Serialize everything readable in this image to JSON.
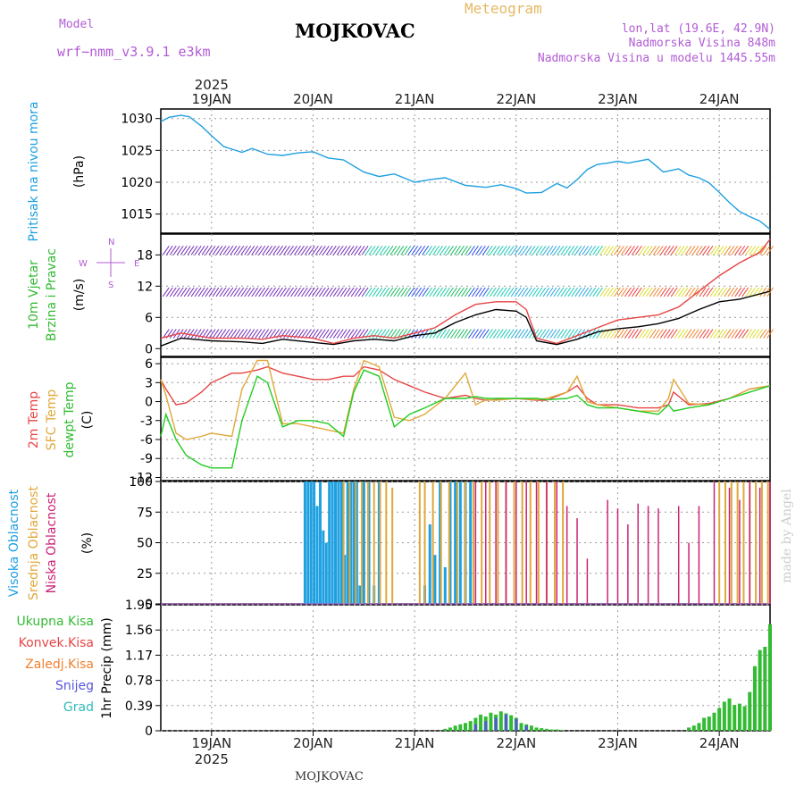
{
  "header": {
    "model_label": "Model",
    "model_name": "wrf−nmm_v3.9.1  e3km",
    "station": "MOJKOVAC",
    "meteogram_label": "Meteogram",
    "coords": "lon,lat (19.6E, 42.9N)",
    "elevation": "Nadmorska Visina 848m",
    "model_elevation": "Nadmorska Visina u modelu 1445.55m"
  },
  "footer": {
    "station": "MOJKOVAC",
    "watermark": "made by Angel"
  },
  "colors": {
    "pressure": "#1fa0e0",
    "temp2m": "#e84545",
    "sfc": "#e0a83a",
    "dew": "#22cc22",
    "high": "#1fa0e0",
    "mid": "#e0a83a",
    "low": "#cc2277",
    "total": "#33bb33",
    "conv": "#e84545",
    "freezing": "#f08030",
    "snow": "#5555dd",
    "grad": "#33bbbb",
    "wind": "#7733bb"
  },
  "x_axis": {
    "top_year": "2025",
    "bottom_year": "2025",
    "days": [
      "19JAN",
      "20JAN",
      "21JAN",
      "22JAN",
      "23JAN",
      "24JAN"
    ]
  },
  "chart_data": [
    {
      "type": "line",
      "name": "pressure",
      "title": "Pritisak na nivou mora",
      "ylabel": "(hPa)",
      "ylim": [
        1012,
        1031.5
      ],
      "yticks": [
        1015,
        1020,
        1025,
        1030
      ],
      "xlim": [
        -0.5,
        5.5
      ],
      "x": [
        -0.5,
        -0.42,
        -0.3,
        -0.22,
        -0.1,
        0.0,
        0.12,
        0.3,
        0.4,
        0.55,
        0.7,
        0.85,
        1.0,
        1.15,
        1.3,
        1.5,
        1.65,
        1.8,
        2.0,
        2.15,
        2.3,
        2.5,
        2.7,
        2.85,
        3.0,
        3.1,
        3.25,
        3.4,
        3.5,
        3.6,
        3.7,
        3.8,
        3.9,
        4.0,
        4.1,
        4.3,
        4.45,
        4.6,
        4.7,
        4.8,
        4.9,
        5.0,
        5.1,
        5.2,
        5.3,
        5.4,
        5.5
      ],
      "values": [
        1029.5,
        1030.2,
        1030.5,
        1030.3,
        1028.8,
        1027.3,
        1025.6,
        1024.7,
        1025.3,
        1024.4,
        1024.2,
        1024.6,
        1024.8,
        1023.8,
        1023.5,
        1021.6,
        1020.9,
        1021.3,
        1020.0,
        1020.4,
        1020.7,
        1019.5,
        1019.2,
        1019.6,
        1019.0,
        1018.3,
        1018.4,
        1019.8,
        1019.1,
        1020.4,
        1022.0,
        1022.8,
        1023.0,
        1023.3,
        1023.0,
        1023.6,
        1021.6,
        1022.1,
        1021.1,
        1020.7,
        1019.9,
        1018.4,
        1016.8,
        1015.4,
        1014.6,
        1013.9,
        1012.6
      ]
    },
    {
      "type": "line",
      "name": "wind",
      "title": "10m Vjetar Brzina i Pravac",
      "ylabel": "(m/s)",
      "ylim": [
        -1.5,
        22
      ],
      "yticks": [
        0,
        6,
        12,
        18
      ],
      "xlim": [
        -0.5,
        5.5
      ],
      "compass": {
        "north": "N",
        "south": "S",
        "east": "E",
        "west": "W"
      },
      "x": [
        -0.5,
        -0.3,
        0.0,
        0.3,
        0.5,
        0.7,
        1.0,
        1.2,
        1.4,
        1.6,
        1.8,
        2.0,
        2.2,
        2.4,
        2.6,
        2.8,
        3.0,
        3.1,
        3.2,
        3.4,
        3.6,
        3.8,
        4.0,
        4.2,
        4.4,
        4.6,
        4.8,
        5.0,
        5.2,
        5.4,
        5.5
      ],
      "series": [
        {
          "name": "mean speed",
          "values": [
            0.5,
            2.0,
            1.5,
            1.3,
            1.0,
            1.8,
            1.2,
            0.8,
            1.5,
            1.8,
            1.5,
            2.5,
            3.0,
            5.0,
            6.5,
            7.5,
            7.2,
            6.0,
            1.5,
            0.8,
            1.8,
            3.2,
            3.8,
            4.2,
            4.8,
            5.8,
            7.5,
            9.0,
            9.5,
            10.5,
            11.0
          ]
        },
        {
          "name": "gust",
          "values": [
            2.0,
            3.0,
            2.0,
            2.0,
            1.8,
            2.5,
            2.0,
            1.0,
            2.0,
            2.5,
            2.0,
            3.0,
            4.0,
            6.5,
            8.5,
            9.0,
            9.0,
            7.5,
            2.0,
            1.0,
            2.5,
            4.0,
            5.5,
            6.0,
            6.5,
            8.0,
            11.0,
            14.0,
            16.5,
            18.5,
            21.0
          ]
        }
      ]
    },
    {
      "type": "line",
      "name": "temperature",
      "title": "2m Temp / SFC Temp / dewpt Temp",
      "ylabel": "(C)",
      "ylim": [
        -12.5,
        7
      ],
      "yticks": [
        6,
        3,
        0,
        -3,
        -6,
        -9,
        -12
      ],
      "xlim": [
        -0.5,
        5.5
      ],
      "x": [
        -0.5,
        -0.45,
        -0.35,
        -0.25,
        -0.1,
        0.0,
        0.2,
        0.3,
        0.45,
        0.55,
        0.7,
        0.85,
        1.0,
        1.15,
        1.3,
        1.4,
        1.5,
        1.65,
        1.8,
        1.95,
        2.1,
        2.3,
        2.5,
        2.6,
        2.7,
        2.8,
        3.0,
        3.2,
        3.3,
        3.5,
        3.6,
        3.7,
        3.8,
        4.0,
        4.2,
        4.4,
        4.5,
        4.55,
        4.7,
        4.9,
        5.1,
        5.3,
        5.5
      ],
      "series": [
        {
          "name": "2m Temp",
          "values": [
            3.5,
            2.0,
            -0.5,
            -0.2,
            1.5,
            3.0,
            4.5,
            4.5,
            5.0,
            5.5,
            4.5,
            4.0,
            3.5,
            3.5,
            4.0,
            4.0,
            5.5,
            5.0,
            3.5,
            2.5,
            1.5,
            0.5,
            1.0,
            0.5,
            0.2,
            0.3,
            0.5,
            0.2,
            0.2,
            1.5,
            2.5,
            0.5,
            -0.5,
            -0.5,
            -1.0,
            -1.0,
            -0.5,
            1.5,
            -0.5,
            -0.3,
            0.5,
            2.0,
            2.5
          ]
        },
        {
          "name": "SFC Temp",
          "values": [
            3.5,
            1.0,
            -5.0,
            -6.0,
            -5.5,
            -5.0,
            -5.5,
            2.0,
            6.5,
            6.5,
            -3.5,
            -3.5,
            -4.0,
            -4.5,
            -5.0,
            2.0,
            6.5,
            5.5,
            -2.5,
            -3.0,
            -2.0,
            0.5,
            4.5,
            -0.5,
            0.3,
            0.2,
            0.5,
            0.3,
            0.5,
            1.5,
            4.0,
            0.0,
            -0.5,
            -1.0,
            -1.5,
            -1.5,
            0.5,
            3.5,
            -0.3,
            -0.5,
            0.5,
            2.0,
            2.5
          ]
        },
        {
          "name": "dewpt Temp",
          "values": [
            -5.5,
            -2.0,
            -6.0,
            -8.5,
            -10.0,
            -10.5,
            -10.5,
            -3.0,
            4.0,
            3.0,
            -4.0,
            -3.0,
            -3.0,
            -3.5,
            -5.5,
            1.5,
            5.0,
            4.0,
            -4.0,
            -2.0,
            -1.0,
            0.5,
            0.5,
            0.8,
            0.5,
            0.5,
            0.5,
            0.5,
            0.3,
            0.5,
            1.0,
            -0.5,
            -1.0,
            -1.0,
            -1.5,
            -2.0,
            -0.5,
            -1.5,
            -1.0,
            -0.5,
            0.5,
            1.5,
            2.5
          ]
        }
      ]
    },
    {
      "type": "bar",
      "name": "cloud_cover",
      "title": "Visoka / Srednja / Niska Oblacnost",
      "ylabel": "(%)",
      "ylim": [
        0,
        100
      ],
      "yticks": [
        0,
        25,
        50,
        75,
        100
      ],
      "xlim": [
        -0.5,
        5.5
      ],
      "series": [
        {
          "name": "Visoka Oblacnost",
          "x": [
            0.92,
            0.95,
            0.98,
            1.01,
            1.04,
            1.07,
            1.1,
            1.13,
            1.16,
            1.19,
            1.22,
            1.25,
            1.28,
            1.31,
            1.34,
            1.37,
            1.4,
            1.43,
            1.46,
            1.5,
            1.55,
            1.6,
            1.65,
            2.1,
            2.15,
            2.2,
            2.25,
            2.3,
            2.35,
            2.4,
            2.45,
            2.5,
            2.55
          ],
          "values": [
            100,
            100,
            100,
            100,
            80,
            100,
            60,
            50,
            100,
            100,
            100,
            100,
            100,
            40,
            100,
            100,
            100,
            100,
            15,
            100,
            100,
            15,
            100,
            15,
            65,
            40,
            100,
            30,
            100,
            100,
            100,
            100,
            100
          ]
        },
        {
          "name": "Srednja Oblacnost",
          "x": [
            1.3,
            1.36,
            1.42,
            1.48,
            1.54,
            1.6,
            1.66,
            1.72,
            1.78,
            2.05,
            2.1,
            2.18,
            2.26,
            2.34,
            2.42,
            2.5,
            2.58,
            2.66,
            2.74,
            2.82,
            2.9,
            2.98,
            3.06,
            3.14,
            3.22,
            3.3,
            3.38,
            3.46,
            5.0,
            5.06,
            5.12,
            5.18,
            5.24,
            5.3,
            5.36,
            5.42,
            5.48
          ],
          "values": [
            100,
            100,
            100,
            100,
            100,
            100,
            100,
            100,
            95,
            100,
            100,
            100,
            100,
            100,
            100,
            100,
            100,
            100,
            100,
            100,
            100,
            100,
            100,
            100,
            100,
            100,
            100,
            100,
            100,
            100,
            100,
            100,
            100,
            100,
            100,
            100,
            100
          ]
        },
        {
          "name": "Niska Oblacnost",
          "x": [
            2.6,
            2.7,
            2.8,
            2.9,
            3.0,
            3.1,
            3.2,
            3.3,
            3.4,
            3.5,
            3.6,
            3.7,
            3.9,
            4.0,
            4.1,
            4.2,
            4.3,
            4.4,
            4.6,
            4.7,
            4.8,
            4.95,
            5.1,
            5.2,
            5.3,
            5.4,
            5.5
          ],
          "values": [
            100,
            100,
            100,
            100,
            100,
            100,
            100,
            100,
            100,
            80,
            70,
            37,
            85,
            78,
            65,
            82,
            80,
            78,
            80,
            50,
            80,
            100,
            95,
            85,
            100,
            95,
            100
          ]
        }
      ]
    },
    {
      "type": "bar",
      "name": "precipitation",
      "title": "1hr Precip",
      "ylabel": "1hr Precip (mm)",
      "ylim": [
        0,
        1.95
      ],
      "yticks": [
        0,
        0.39,
        0.78,
        1.17,
        1.56,
        1.95
      ],
      "xlim": [
        -0.5,
        5.5
      ],
      "legend": [
        "Ukupna  Kisa",
        "Konvek.Kisa",
        "Zaledj.Kisa",
        "Snijeg",
        "Grad"
      ],
      "series": [
        {
          "name": "Ukupna Kisa",
          "x": [
            2.3,
            2.35,
            2.4,
            2.45,
            2.5,
            2.55,
            2.6,
            2.65,
            2.7,
            2.75,
            2.8,
            2.85,
            2.9,
            2.95,
            3.0,
            3.05,
            3.1,
            3.15,
            3.2,
            3.25,
            3.3,
            3.35,
            3.4,
            3.45,
            4.7,
            4.75,
            4.8,
            4.85,
            4.9,
            4.95,
            5.0,
            5.05,
            5.1,
            5.15,
            5.2,
            5.25,
            5.3,
            5.35,
            5.4,
            5.45,
            5.5
          ],
          "values": [
            0.03,
            0.05,
            0.08,
            0.1,
            0.12,
            0.15,
            0.2,
            0.25,
            0.22,
            0.28,
            0.25,
            0.3,
            0.27,
            0.24,
            0.2,
            0.12,
            0.1,
            0.08,
            0.05,
            0.04,
            0.03,
            0.02,
            0.02,
            0.01,
            0.05,
            0.08,
            0.12,
            0.2,
            0.22,
            0.28,
            0.35,
            0.45,
            0.5,
            0.4,
            0.42,
            0.38,
            0.6,
            1.0,
            1.25,
            1.3,
            1.65
          ]
        },
        {
          "name": "Snijeg",
          "x": [
            2.6,
            2.7,
            2.8,
            2.9,
            3.0,
            3.1
          ],
          "values": [
            0.1,
            0.15,
            0.2,
            0.25,
            0.18,
            0.08
          ]
        }
      ]
    }
  ]
}
